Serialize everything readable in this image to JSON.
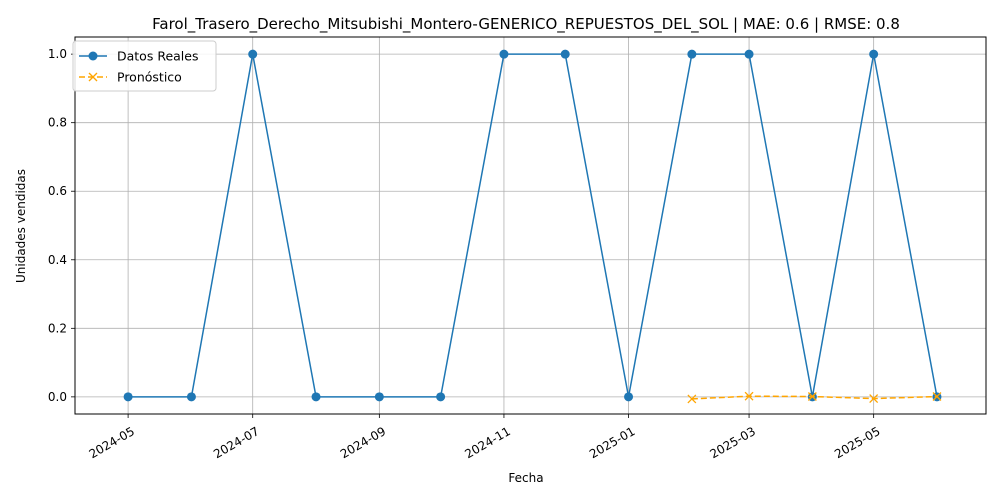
{
  "chart_data": {
    "type": "line",
    "title": "Farol_Trasero_Derecho_Mitsubishi_Montero-GENERICO_REPUESTOS_DEL_SOL | MAE: 0.6 | RMSE: 0.8",
    "xlabel": "Fecha",
    "ylabel": "Unidades vendidas",
    "xlim": [
      "2024-04-05",
      "2025-06-25"
    ],
    "ylim": [
      -0.05,
      1.05
    ],
    "grid": true,
    "legend_position": "upper-left",
    "x_ticks": [
      "2024-05-01",
      "2024-07-01",
      "2024-09-01",
      "2024-11-01",
      "2025-01-01",
      "2025-03-01",
      "2025-05-01"
    ],
    "x_tick_labels": [
      "2024-05",
      "2024-07",
      "2024-09",
      "2024-11",
      "2025-01",
      "2025-03",
      "2025-05"
    ],
    "y_ticks": [
      0.0,
      0.2,
      0.4,
      0.6,
      0.8,
      1.0
    ],
    "y_tick_labels": [
      "0.0",
      "0.2",
      "0.4",
      "0.6",
      "0.8",
      "1.0"
    ],
    "series": [
      {
        "name": "Datos Reales",
        "color": "#1f77b4",
        "style": "solid",
        "marker": "circle",
        "x": [
          "2024-05-01",
          "2024-06-01",
          "2024-07-01",
          "2024-08-01",
          "2024-09-01",
          "2024-10-01",
          "2024-11-01",
          "2024-12-01",
          "2025-01-01",
          "2025-02-01",
          "2025-03-01",
          "2025-04-01",
          "2025-05-01",
          "2025-06-01"
        ],
        "y": [
          0,
          0,
          1,
          0,
          0,
          0,
          1,
          1,
          0,
          1,
          1,
          0,
          1,
          0
        ]
      },
      {
        "name": "Pronóstico",
        "color": "#ffa500",
        "style": "dashed",
        "marker": "x",
        "x": [
          "2025-02-01",
          "2025-03-01",
          "2025-04-01",
          "2025-05-01",
          "2025-06-01"
        ],
        "y": [
          -0.006,
          0.002,
          0.001,
          -0.005,
          0.001
        ]
      }
    ]
  }
}
